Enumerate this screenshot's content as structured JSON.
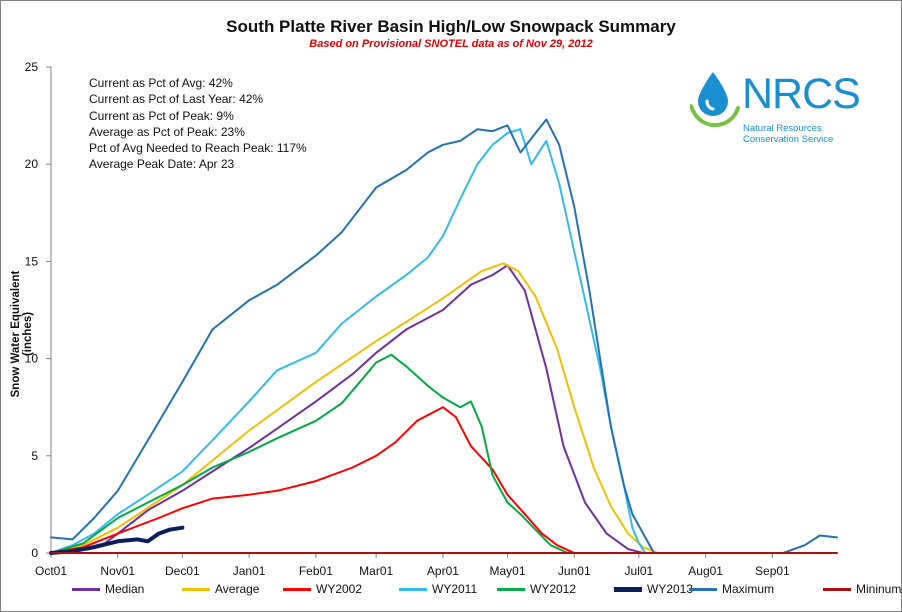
{
  "chart_data": {
    "type": "line",
    "title": "South Platte River Basin High/Low Snowpack Summary",
    "subtitle": "Based on Provisional SNOTEL data as of Nov 29, 2012",
    "xlabel": "",
    "ylabel": "Snow Water Equivalent (inches)",
    "ylim": [
      0,
      25
    ],
    "yticks": [
      0,
      5,
      10,
      15,
      20,
      25
    ],
    "xticks": [
      {
        "label": "Oct01",
        "day": 0
      },
      {
        "label": "Nov01",
        "day": 31
      },
      {
        "label": "Dec01",
        "day": 61
      },
      {
        "label": "Jan01",
        "day": 92
      },
      {
        "label": "Feb01",
        "day": 123
      },
      {
        "label": "Mar01",
        "day": 151
      },
      {
        "label": "Apr01",
        "day": 182
      },
      {
        "label": "May01",
        "day": 212
      },
      {
        "label": "Jun01",
        "day": 243
      },
      {
        "label": "Jul01",
        "day": 273
      },
      {
        "label": "Aug01",
        "day": 304
      },
      {
        "label": "Sep01",
        "day": 335
      }
    ],
    "xlim_days": [
      0,
      365
    ],
    "x_unit_note": "days from Oct01",
    "annotations": [
      "Current as Pct of Avg: 42%",
      "Current as Pct of Last Year: 42%",
      "Current as Pct of Peak: 9%",
      "Average as Pct of Peak: 23%",
      "Pct of Avg Needed to Reach Peak: 117%",
      "Average Peak Date: Apr 23"
    ],
    "legend_position": "bottom",
    "series": [
      {
        "name": "Median",
        "color": "#7030a0",
        "width": 2,
        "points": [
          [
            0,
            0
          ],
          [
            10,
            0.1
          ],
          [
            25,
            0.5
          ],
          [
            31,
            1.0
          ],
          [
            45,
            2.2
          ],
          [
            61,
            3.2
          ],
          [
            75,
            4.2
          ],
          [
            92,
            5.4
          ],
          [
            105,
            6.4
          ],
          [
            123,
            7.8
          ],
          [
            140,
            9.2
          ],
          [
            151,
            10.3
          ],
          [
            165,
            11.5
          ],
          [
            182,
            12.5
          ],
          [
            195,
            13.8
          ],
          [
            205,
            14.3
          ],
          [
            212,
            14.8
          ],
          [
            220,
            13.5
          ],
          [
            230,
            9.5
          ],
          [
            238,
            5.5
          ],
          [
            248,
            2.6
          ],
          [
            258,
            1.0
          ],
          [
            268,
            0.2
          ],
          [
            275,
            0
          ]
        ]
      },
      {
        "name": "Average",
        "color": "#f0c000",
        "width": 2,
        "points": [
          [
            0,
            0
          ],
          [
            15,
            0.4
          ],
          [
            31,
            1.3
          ],
          [
            61,
            3.5
          ],
          [
            92,
            6.3
          ],
          [
            123,
            8.8
          ],
          [
            151,
            10.9
          ],
          [
            182,
            13.1
          ],
          [
            200,
            14.5
          ],
          [
            210,
            14.9
          ],
          [
            217,
            14.5
          ],
          [
            225,
            13.2
          ],
          [
            235,
            10.5
          ],
          [
            243,
            7.5
          ],
          [
            252,
            4.4
          ],
          [
            260,
            2.4
          ],
          [
            268,
            1.0
          ],
          [
            275,
            0.3
          ],
          [
            282,
            0
          ]
        ]
      },
      {
        "name": "WY2002",
        "color": "#ff0000",
        "width": 2,
        "points": [
          [
            0,
            0
          ],
          [
            15,
            0.3
          ],
          [
            31,
            1.0
          ],
          [
            50,
            1.8
          ],
          [
            61,
            2.3
          ],
          [
            75,
            2.8
          ],
          [
            92,
            3.0
          ],
          [
            105,
            3.2
          ],
          [
            123,
            3.7
          ],
          [
            140,
            4.4
          ],
          [
            151,
            5.0
          ],
          [
            160,
            5.7
          ],
          [
            170,
            6.8
          ],
          [
            182,
            7.5
          ],
          [
            188,
            7.0
          ],
          [
            195,
            5.5
          ],
          [
            205,
            4.3
          ],
          [
            212,
            3.0
          ],
          [
            220,
            2.0
          ],
          [
            228,
            1.0
          ],
          [
            235,
            0.4
          ],
          [
            243,
            0
          ]
        ]
      },
      {
        "name": "WY2011",
        "color": "#33bbee",
        "width": 2,
        "points": [
          [
            0,
            0
          ],
          [
            10,
            0.4
          ],
          [
            20,
            1.0
          ],
          [
            31,
            2.0
          ],
          [
            45,
            3.0
          ],
          [
            61,
            4.2
          ],
          [
            75,
            5.8
          ],
          [
            92,
            7.8
          ],
          [
            105,
            9.4
          ],
          [
            123,
            10.3
          ],
          [
            135,
            11.8
          ],
          [
            151,
            13.2
          ],
          [
            165,
            14.3
          ],
          [
            175,
            15.2
          ],
          [
            182,
            16.3
          ],
          [
            190,
            18.2
          ],
          [
            198,
            20.0
          ],
          [
            205,
            21.0
          ],
          [
            212,
            21.6
          ],
          [
            218,
            21.8
          ],
          [
            223,
            20.0
          ],
          [
            230,
            21.2
          ],
          [
            236,
            19.0
          ],
          [
            243,
            15.5
          ],
          [
            250,
            12.0
          ],
          [
            255,
            9.5
          ],
          [
            260,
            6.5
          ],
          [
            266,
            3.5
          ],
          [
            270,
            1.3
          ],
          [
            273,
            0.5
          ],
          [
            276,
            0
          ]
        ]
      },
      {
        "name": "WY2012",
        "color": "#00aa44",
        "width": 2,
        "points": [
          [
            0,
            0
          ],
          [
            15,
            0.5
          ],
          [
            31,
            1.8
          ],
          [
            45,
            2.6
          ],
          [
            61,
            3.5
          ],
          [
            75,
            4.4
          ],
          [
            92,
            5.2
          ],
          [
            105,
            5.9
          ],
          [
            123,
            6.8
          ],
          [
            135,
            7.7
          ],
          [
            145,
            9.0
          ],
          [
            151,
            9.8
          ],
          [
            158,
            10.2
          ],
          [
            165,
            9.6
          ],
          [
            175,
            8.6
          ],
          [
            182,
            8.0
          ],
          [
            190,
            7.5
          ],
          [
            195,
            7.8
          ],
          [
            200,
            6.5
          ],
          [
            205,
            4.0
          ],
          [
            212,
            2.6
          ],
          [
            218,
            2.0
          ],
          [
            225,
            1.2
          ],
          [
            232,
            0.4
          ],
          [
            240,
            0
          ]
        ]
      },
      {
        "name": "WY2013",
        "color": "#0a1f5c",
        "width": 4,
        "points": [
          [
            0,
            0
          ],
          [
            10,
            0.1
          ],
          [
            20,
            0.3
          ],
          [
            31,
            0.6
          ],
          [
            40,
            0.7
          ],
          [
            45,
            0.6
          ],
          [
            50,
            1.0
          ],
          [
            55,
            1.2
          ],
          [
            61,
            1.3
          ]
        ]
      },
      {
        "name": "Maximum",
        "color": "#2471b3",
        "width": 2,
        "points": [
          [
            0,
            0.8
          ],
          [
            10,
            0.7
          ],
          [
            20,
            1.8
          ],
          [
            31,
            3.2
          ],
          [
            45,
            5.8
          ],
          [
            61,
            8.8
          ],
          [
            75,
            11.5
          ],
          [
            92,
            13.0
          ],
          [
            105,
            13.8
          ],
          [
            123,
            15.3
          ],
          [
            135,
            16.5
          ],
          [
            151,
            18.8
          ],
          [
            165,
            19.7
          ],
          [
            175,
            20.6
          ],
          [
            182,
            21.0
          ],
          [
            190,
            21.2
          ],
          [
            198,
            21.8
          ],
          [
            205,
            21.7
          ],
          [
            212,
            22.0
          ],
          [
            218,
            20.6
          ],
          [
            225,
            21.6
          ],
          [
            230,
            22.3
          ],
          [
            236,
            21.0
          ],
          [
            243,
            17.8
          ],
          [
            250,
            13.5
          ],
          [
            255,
            10.0
          ],
          [
            260,
            6.5
          ],
          [
            266,
            3.5
          ],
          [
            270,
            2.0
          ],
          [
            275,
            1.0
          ],
          [
            280,
            0
          ],
          [
            340,
            0
          ],
          [
            350,
            0.4
          ],
          [
            357,
            0.9
          ],
          [
            365,
            0.8
          ]
        ]
      },
      {
        "name": "Mininum",
        "color": "#aa1010",
        "width": 2,
        "points": [
          [
            0,
            0
          ],
          [
            365,
            0
          ]
        ]
      }
    ]
  }
}
